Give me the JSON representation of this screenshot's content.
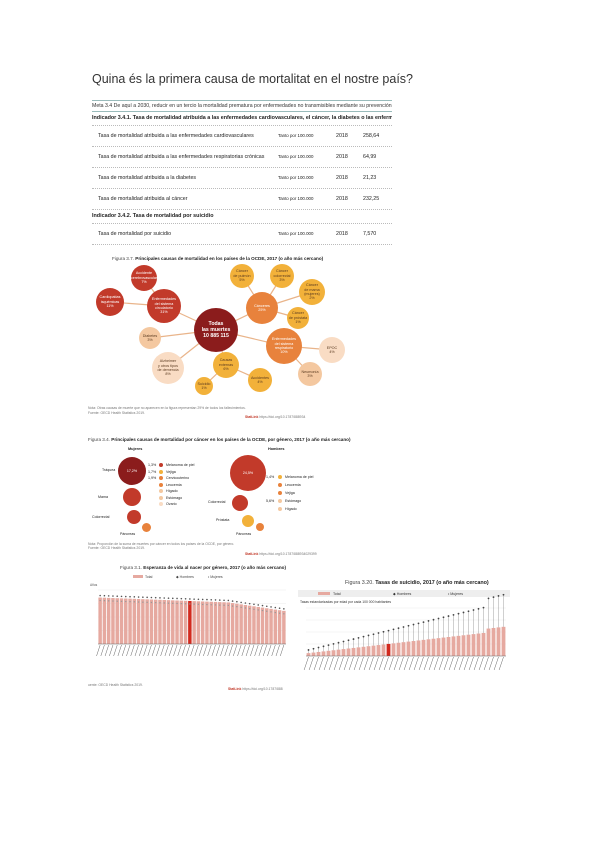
{
  "title": "Quina és la primera causa de mortalitat en el nostre país?",
  "table": {
    "goal": "Meta 3.4 De aquí a 2030, reducir en un tercio la mortalidad prematura por enfermedades no transmisibles mediante su prevención y tratamie",
    "indicator1": "Indicador 3.4.1. Tasa de mortalidad atribuida a las enfermedades cardiovasculares, el cáncer, la diabetes o las enfermedades respiratorias crónic",
    "rows1": [
      {
        "label": "Tasa de mortalidad atribuida a las enfermedades cardiovasculares",
        "unit": "Tanto por 100.000",
        "year": "2018",
        "value": "258,64"
      },
      {
        "label": "Tasa de mortalidad atribuida a las enfermedades respiratorias crónicas",
        "unit": "Tanto por 100.000",
        "year": "2018",
        "value": "64,99"
      },
      {
        "label": "Tasa de mortalidad atribuida a la diabetes",
        "unit": "Tanto por 100.000",
        "year": "2018",
        "value": "21,23"
      },
      {
        "label": "Tasa de mortalidad atribuida al cáncer",
        "unit": "Tanto por 100.000",
        "year": "2018",
        "value": "232,25"
      }
    ],
    "indicator2": "Indicador 3.4.2. Tasa de mortalidad por suicidio",
    "rows2": [
      {
        "label": "Tasa de mortalidad por suicidio",
        "unit": "Tanto por 100.000",
        "year": "2018",
        "value": "7,570"
      }
    ]
  },
  "fig37": {
    "caption_num": "Figura 3.7.",
    "caption_text": "Principales causas de mortalidad en los países de la OCDE, 2017 (o año más cercano)",
    "center": [
      "Todas",
      "las muertes",
      "10 885 115"
    ],
    "bubbles": [
      {
        "lines": [
          "Accidente",
          "cerebrovascular",
          "7%"
        ]
      },
      {
        "lines": [
          "Cardiopatías",
          "isquémicas",
          "11%"
        ]
      },
      {
        "lines": [
          "Enfermedades",
          "del sistema",
          "circulatorio",
          "31%"
        ]
      },
      {
        "lines": [
          "Diabetes",
          "3%"
        ]
      },
      {
        "lines": [
          "Alzheimer",
          "y otros tipos",
          "de demencia",
          "8%"
        ]
      },
      {
        "lines": [
          "Suicidio",
          "1%"
        ]
      },
      {
        "lines": [
          "Causas",
          "externas",
          "6%"
        ]
      },
      {
        "lines": [
          "Accidentes",
          "4%"
        ]
      },
      {
        "lines": [
          "Cánceres",
          "25%"
        ]
      },
      {
        "lines": [
          "Cáncer",
          "de pulmón",
          "5%"
        ]
      },
      {
        "lines": [
          "Cáncer",
          "colorrectal",
          "3%"
        ]
      },
      {
        "lines": [
          "Cáncer",
          "de mama",
          "(mujeres)",
          "2%"
        ]
      },
      {
        "lines": [
          "Cáncer",
          "de próstata",
          "1%"
        ]
      },
      {
        "lines": [
          "Enfermedades",
          "del sistema",
          "respiratorio",
          "10%"
        ]
      },
      {
        "lines": [
          "EPOC",
          "4%"
        ]
      },
      {
        "lines": [
          "Neumonía",
          "3%"
        ]
      }
    ],
    "note": "Nota: Otras causas de muerte que no aparecen en la figura representan 29% de todos los fallecimientos.",
    "source_line": "Fuente: OECD Health Statistics 2019.",
    "statlink": "StatLink",
    "url": "https://doi.org/10.1787/888934"
  },
  "fig34": {
    "caption_num": "Figura 3.4.",
    "caption_text": "Principales causas de mortalidad por cáncer en los países de la OCDE, por género, 2017 (o año más cercano)",
    "left_heading": "Mujeres",
    "right_heading": "Hombres",
    "left_center": "17,2%",
    "right_center": "24,5%",
    "left_labels": [
      "Tráquea",
      "Mama",
      "Colorrectal",
      "Páncreas"
    ],
    "right_labels": [
      "Colorrectal",
      "Próstata",
      "Páncreas"
    ],
    "legend_left": [
      "Melanoma de piel",
      "Vejiga",
      "Cervicouterino",
      "Leucemia",
      "Hígado",
      "Estómago",
      "Ovario"
    ],
    "legend_left_pct": [
      "1,3%",
      "1,7%",
      "1,9%",
      "",
      "",
      "",
      ""
    ],
    "legend_right": [
      "Melanoma de piel",
      "Leucemia",
      "Vejiga",
      "Estómago",
      "Hígado"
    ],
    "legend_right_pct": [
      "1,4%",
      "",
      "",
      "5,6%",
      ""
    ],
    "note": "Nota: Proporción de la suma de muertes por cáncer en todos los países de la OCDE, por género.",
    "source_line": "Fuente: OECD Health Statistics 2019.",
    "statlink": "StatLink",
    "url": "https://doi.org/10.1787/888934029399"
  },
  "fig31": {
    "caption_num": "Figura 3.1.",
    "caption_text": "Esperanza de vida al nacer por género, 2017 (o año más cercano)",
    "legend": [
      "Total",
      "Hombres",
      "Mujeres"
    ],
    "ylabel": "Años",
    "source_line": "uente: OECD Health Statistics 2019.",
    "statlink": "StatLink",
    "url": "https://doi.org/10.1787/888"
  },
  "fig320": {
    "caption_num": "Figura 3.20.",
    "caption_text": "Tasas de suicidio, 2017 (o año más cercano)",
    "legend": [
      "Total",
      "Hombres",
      "Mujeres"
    ],
    "subtitle": "Tasas estandarizadas por edad por cada 100 000 habitantes"
  },
  "colors": {
    "dark_red": "#8b1c1c",
    "red": "#c23a2a",
    "orange": "#e8823c",
    "amber": "#f2b13a",
    "peach": "#f4c8a0",
    "light_peach": "#f9dcc4",
    "pink_bar": "#e6a9a0",
    "highlight": "#d22a1e"
  }
}
